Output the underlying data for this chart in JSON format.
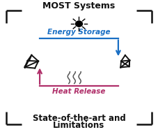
{
  "title_top": "MOST Systems",
  "title_bottom_line1": "State-of-the-art and",
  "title_bottom_line2": "Limitations",
  "energy_storage_label": "Energy Storage",
  "heat_release_label": "Heat Release",
  "arrow_blue_color": "#1a6fc4",
  "arrow_pink_color": "#b0306a",
  "text_color_black": "#111111",
  "background_color": "#ffffff",
  "title_fontsize": 9.0,
  "label_fontsize": 7.5,
  "fig_width": 2.27,
  "fig_height": 1.89
}
